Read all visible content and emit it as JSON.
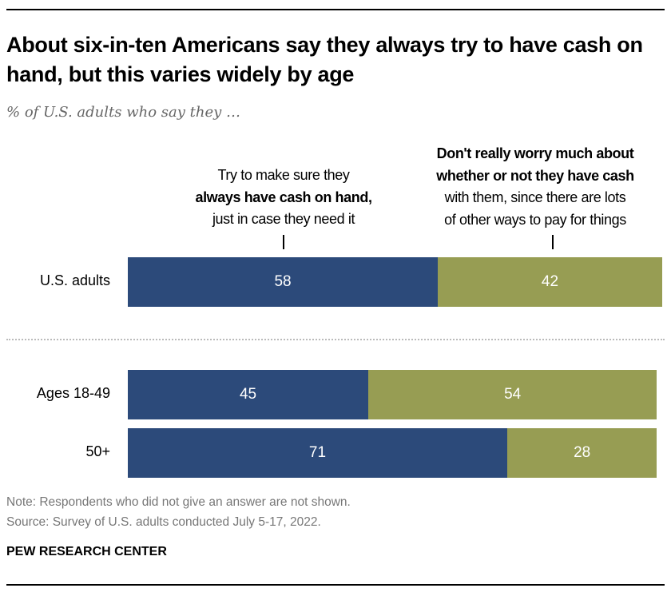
{
  "title": "About six-in-ten Americans say they always try to have cash on hand, but this varies widely by age",
  "subtitle": "% of U.S. adults who say they …",
  "legend": {
    "left": {
      "line1": "Try to make sure they",
      "bold": "always have cash on hand,",
      "line3": "just in case they need it"
    },
    "right": {
      "bold1": "Don't really worry much about",
      "bold2": "whether or not they have cash",
      "line3": "with them, since there are lots",
      "line4": "of other ways to pay for things"
    }
  },
  "colors": {
    "always_cash": "#2c4a7a",
    "dont_worry": "#979d53"
  },
  "chart_data": {
    "type": "bar",
    "orientation": "horizontal",
    "stacked": true,
    "categories": [
      "U.S. adults",
      "Ages 18-49",
      "50+"
    ],
    "series": [
      {
        "name": "Try to make sure they always have cash on hand, just in case they need it",
        "values": [
          58,
          45,
          71
        ]
      },
      {
        "name": "Don't really worry much about whether or not they have cash with them, since there are lots of other ways to pay for things",
        "values": [
          42,
          54,
          28
        ]
      }
    ],
    "xlim": [
      0,
      100
    ]
  },
  "notes": {
    "note": "Note: Respondents who did not give an answer are not shown.",
    "source": "Source: Survey of U.S. adults conducted July 5-17, 2022."
  },
  "brand": "PEW RESEARCH CENTER"
}
